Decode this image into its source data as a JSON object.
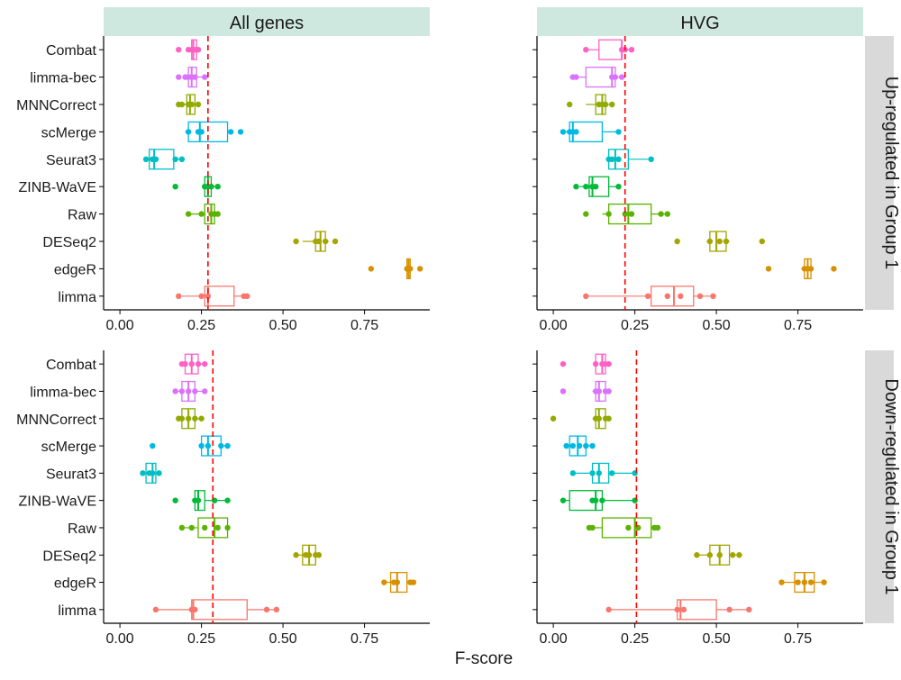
{
  "chart_data": {
    "type": "box",
    "xlabel": "F-score",
    "ylabel": "",
    "xlim": [
      -0.05,
      0.95
    ],
    "x_ticks": [
      0.0,
      0.25,
      0.5,
      0.75
    ],
    "x_tick_labels": [
      "0.00",
      "0.25",
      "0.50",
      "0.75"
    ],
    "column_facets": [
      "All genes",
      "HVG"
    ],
    "row_facets": [
      "Up-regulated in Group 1",
      "Down-regulated in Group 1"
    ],
    "methods": [
      "Combat",
      "limma-bec",
      "MNNCorrect",
      "scMerge",
      "Seurat3",
      "ZINB-WaVE",
      "Raw",
      "DESeq2",
      "edgeR",
      "limma"
    ],
    "method_colors": {
      "Combat": "#FF61C3",
      "limma-bec": "#DB72FB",
      "MNNCorrect": "#93AA00",
      "scMerge": "#00B9E3",
      "Seurat3": "#00BFC4",
      "ZINB-WaVE": "#00BA38",
      "Raw": "#5BB300",
      "DESeq2": "#A3A500",
      "edgeR": "#D89000",
      "limma": "#F8766D"
    },
    "reference_line_color": "#FF0000",
    "grid": false,
    "legend": "none",
    "panels": [
      {
        "col": "All genes",
        "row": "Up-regulated in Group 1",
        "ref_line": 0.27,
        "boxes": {
          "Combat": {
            "min": 0.21,
            "q1": 0.22,
            "median": 0.225,
            "q3": 0.235,
            "max": 0.24,
            "points": [
              0.18,
              0.21,
              0.22,
              0.225,
              0.23,
              0.24
            ]
          },
          "limma-bec": {
            "min": 0.2,
            "q1": 0.21,
            "median": 0.22,
            "q3": 0.235,
            "max": 0.26,
            "points": [
              0.18,
              0.2,
              0.21,
              0.22,
              0.23,
              0.26
            ]
          },
          "MNNCorrect": {
            "min": 0.19,
            "q1": 0.205,
            "median": 0.215,
            "q3": 0.23,
            "max": 0.24,
            "points": [
              0.18,
              0.19,
              0.21,
              0.22,
              0.24
            ]
          },
          "scMerge": {
            "min": 0.2,
            "q1": 0.21,
            "median": 0.245,
            "q3": 0.33,
            "max": 0.33,
            "points": [
              0.21,
              0.24,
              0.25,
              0.34,
              0.37
            ]
          },
          "Seurat3": {
            "min": 0.08,
            "q1": 0.09,
            "median": 0.105,
            "q3": 0.165,
            "max": 0.19,
            "points": [
              0.08,
              0.1,
              0.11,
              0.17,
              0.19
            ]
          },
          "ZINB-WaVE": {
            "min": 0.26,
            "q1": 0.26,
            "median": 0.27,
            "q3": 0.28,
            "max": 0.3,
            "points": [
              0.17,
              0.26,
              0.27,
              0.28,
              0.3
            ]
          },
          "Raw": {
            "min": 0.21,
            "q1": 0.26,
            "median": 0.28,
            "q3": 0.29,
            "max": 0.3,
            "points": [
              0.21,
              0.25,
              0.28,
              0.29,
              0.3
            ]
          },
          "DESeq2": {
            "min": 0.56,
            "q1": 0.6,
            "median": 0.615,
            "q3": 0.63,
            "max": 0.64,
            "points": [
              0.54,
              0.6,
              0.61,
              0.63,
              0.66
            ]
          },
          "edgeR": {
            "min": 0.88,
            "q1": 0.88,
            "median": 0.885,
            "q3": 0.89,
            "max": 0.89,
            "points": [
              0.77,
              0.88,
              0.885,
              0.89,
              0.92
            ]
          },
          "limma": {
            "min": 0.19,
            "q1": 0.26,
            "median": 0.27,
            "q3": 0.35,
            "max": 0.38,
            "points": [
              0.18,
              0.25,
              0.27,
              0.38,
              0.39
            ]
          }
        }
      },
      {
        "col": "HVG",
        "row": "Up-regulated in Group 1",
        "ref_line": 0.22,
        "boxes": {
          "Combat": {
            "min": 0.1,
            "q1": 0.14,
            "median": 0.21,
            "q3": 0.21,
            "max": 0.24,
            "points": [
              0.1,
              0.21,
              0.22,
              0.24
            ]
          },
          "limma-bec": {
            "min": 0.05,
            "q1": 0.1,
            "median": 0.18,
            "q3": 0.19,
            "max": 0.21,
            "points": [
              0.06,
              0.07,
              0.18,
              0.19,
              0.21
            ]
          },
          "MNNCorrect": {
            "min": 0.1,
            "q1": 0.13,
            "median": 0.15,
            "q3": 0.16,
            "max": 0.18,
            "points": [
              0.05,
              0.14,
              0.15,
              0.16,
              0.18
            ]
          },
          "scMerge": {
            "min": 0.03,
            "q1": 0.05,
            "median": 0.06,
            "q3": 0.15,
            "max": 0.2,
            "points": [
              0.03,
              0.05,
              0.06,
              0.07,
              0.2
            ]
          },
          "Seurat3": {
            "min": 0.17,
            "q1": 0.17,
            "median": 0.19,
            "q3": 0.23,
            "max": 0.3,
            "points": [
              0.17,
              0.18,
              0.2,
              0.3
            ]
          },
          "ZINB-WaVE": {
            "min": 0.08,
            "q1": 0.11,
            "median": 0.12,
            "q3": 0.17,
            "max": 0.2,
            "points": [
              0.07,
              0.1,
              0.12,
              0.13,
              0.2
            ]
          },
          "Raw": {
            "min": 0.15,
            "q1": 0.17,
            "median": 0.23,
            "q3": 0.3,
            "max": 0.35,
            "points": [
              0.1,
              0.17,
              0.22,
              0.24,
              0.33,
              0.35
            ]
          },
          "DESeq2": {
            "min": 0.47,
            "q1": 0.48,
            "median": 0.5,
            "q3": 0.53,
            "max": 0.54,
            "points": [
              0.38,
              0.48,
              0.51,
              0.53,
              0.64
            ]
          },
          "edgeR": {
            "min": 0.76,
            "q1": 0.77,
            "median": 0.78,
            "q3": 0.79,
            "max": 0.79,
            "points": [
              0.66,
              0.77,
              0.78,
              0.79,
              0.86
            ]
          },
          "limma": {
            "min": 0.1,
            "q1": 0.3,
            "median": 0.37,
            "q3": 0.43,
            "max": 0.49,
            "points": [
              0.1,
              0.29,
              0.35,
              0.39,
              0.45,
              0.49
            ]
          }
        }
      },
      {
        "col": "All genes",
        "row": "Down-regulated in Group 1",
        "ref_line": 0.285,
        "boxes": {
          "Combat": {
            "min": 0.19,
            "q1": 0.2,
            "median": 0.22,
            "q3": 0.24,
            "max": 0.26,
            "points": [
              0.19,
              0.2,
              0.22,
              0.24,
              0.26
            ]
          },
          "limma-bec": {
            "min": 0.17,
            "q1": 0.19,
            "median": 0.21,
            "q3": 0.23,
            "max": 0.26,
            "points": [
              0.17,
              0.19,
              0.21,
              0.23,
              0.26
            ]
          },
          "MNNCorrect": {
            "min": 0.18,
            "q1": 0.19,
            "median": 0.21,
            "q3": 0.23,
            "max": 0.25,
            "points": [
              0.18,
              0.19,
              0.21,
              0.23,
              0.25
            ]
          },
          "scMerge": {
            "min": 0.25,
            "q1": 0.25,
            "median": 0.27,
            "q3": 0.31,
            "max": 0.33,
            "points": [
              0.1,
              0.25,
              0.27,
              0.31,
              0.33
            ]
          },
          "Seurat3": {
            "min": 0.07,
            "q1": 0.08,
            "median": 0.1,
            "q3": 0.11,
            "max": 0.12,
            "points": [
              0.07,
              0.09,
              0.1,
              0.12
            ]
          },
          "ZINB-WaVE": {
            "min": 0.23,
            "q1": 0.23,
            "median": 0.24,
            "q3": 0.26,
            "max": 0.33,
            "points": [
              0.17,
              0.23,
              0.24,
              0.29,
              0.33
            ]
          },
          "Raw": {
            "min": 0.19,
            "q1": 0.24,
            "median": 0.29,
            "q3": 0.33,
            "max": 0.33,
            "points": [
              0.19,
              0.22,
              0.26,
              0.3,
              0.33
            ]
          },
          "DESeq2": {
            "min": 0.54,
            "q1": 0.56,
            "median": 0.58,
            "q3": 0.6,
            "max": 0.61,
            "points": [
              0.54,
              0.57,
              0.58,
              0.6,
              0.61
            ]
          },
          "edgeR": {
            "min": 0.81,
            "q1": 0.83,
            "median": 0.85,
            "q3": 0.88,
            "max": 0.9,
            "points": [
              0.81,
              0.84,
              0.85,
              0.89,
              0.9
            ]
          },
          "limma": {
            "min": 0.11,
            "q1": 0.22,
            "median": 0.225,
            "q3": 0.39,
            "max": 0.48,
            "points": [
              0.11,
              0.22,
              0.23,
              0.45,
              0.48
            ]
          }
        }
      },
      {
        "col": "HVG",
        "row": "Down-regulated in Group 1",
        "ref_line": 0.255,
        "boxes": {
          "Combat": {
            "min": 0.13,
            "q1": 0.13,
            "median": 0.15,
            "q3": 0.16,
            "max": 0.17,
            "points": [
              0.03,
              0.13,
              0.15,
              0.16,
              0.17
            ]
          },
          "limma-bec": {
            "min": 0.12,
            "q1": 0.13,
            "median": 0.14,
            "q3": 0.16,
            "max": 0.17,
            "points": [
              0.03,
              0.13,
              0.14,
              0.16,
              0.17
            ]
          },
          "MNNCorrect": {
            "min": 0.12,
            "q1": 0.13,
            "median": 0.14,
            "q3": 0.16,
            "max": 0.17,
            "points": [
              0.0,
              0.13,
              0.14,
              0.16,
              0.17
            ]
          },
          "scMerge": {
            "min": 0.04,
            "q1": 0.05,
            "median": 0.075,
            "q3": 0.1,
            "max": 0.12,
            "points": [
              0.04,
              0.06,
              0.08,
              0.1,
              0.12
            ]
          },
          "Seurat3": {
            "min": 0.06,
            "q1": 0.12,
            "median": 0.14,
            "q3": 0.17,
            "max": 0.25,
            "points": [
              0.06,
              0.12,
              0.14,
              0.18,
              0.25
            ]
          },
          "ZINB-WaVE": {
            "min": 0.03,
            "q1": 0.05,
            "median": 0.13,
            "q3": 0.15,
            "max": 0.25,
            "points": [
              0.03,
              0.12,
              0.13,
              0.15,
              0.25
            ]
          },
          "Raw": {
            "min": 0.12,
            "q1": 0.15,
            "median": 0.25,
            "q3": 0.3,
            "max": 0.32,
            "points": [
              0.11,
              0.12,
              0.23,
              0.26,
              0.31,
              0.32
            ]
          },
          "DESeq2": {
            "min": 0.44,
            "q1": 0.48,
            "median": 0.51,
            "q3": 0.54,
            "max": 0.57,
            "points": [
              0.44,
              0.48,
              0.51,
              0.55,
              0.57
            ]
          },
          "edgeR": {
            "min": 0.7,
            "q1": 0.74,
            "median": 0.77,
            "q3": 0.8,
            "max": 0.83,
            "points": [
              0.7,
              0.75,
              0.77,
              0.79,
              0.83
            ]
          },
          "limma": {
            "min": 0.17,
            "q1": 0.38,
            "median": 0.39,
            "q3": 0.5,
            "max": 0.6,
            "points": [
              0.17,
              0.38,
              0.4,
              0.54,
              0.6
            ]
          }
        }
      }
    ]
  }
}
